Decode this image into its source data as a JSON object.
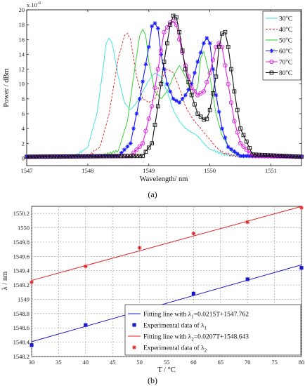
{
  "chart_data": [
    {
      "type": "line",
      "panel_label": "(a)",
      "xlabel": "Wavelength/ nm",
      "ylabel": "Power / dBm",
      "y_multiplier": "x 10",
      "y_exponent": "-6",
      "xlim": [
        1547,
        1551.5
      ],
      "ylim": [
        -1,
        20
      ],
      "xticks": [
        1547,
        1548,
        1549,
        1550,
        1551
      ],
      "yticks": [
        0,
        2,
        4,
        6,
        8,
        10,
        12,
        14,
        16,
        18,
        20
      ],
      "grid": false,
      "legend_position": "top-right",
      "series": [
        {
          "name": "30",
          "unit": "C",
          "deg": "o",
          "color": "#33e0e0",
          "dash": "",
          "marker": "none",
          "x": [
            1547.0,
            1547.8,
            1548.0,
            1548.15,
            1548.25,
            1548.3,
            1548.35,
            1548.4,
            1548.5,
            1548.6,
            1548.7,
            1548.8,
            1548.9,
            1549.0,
            1549.1,
            1549.2,
            1549.3,
            1549.4,
            1549.5,
            1549.6,
            1549.7,
            1549.8,
            1549.9,
            1550.0,
            1550.2,
            1550.4,
            1551.5
          ],
          "y": [
            0.2,
            0.3,
            1.5,
            6,
            12,
            15.5,
            16.2,
            15.5,
            11,
            7.5,
            6.5,
            7.5,
            9,
            10.5,
            11.5,
            11,
            9,
            6.5,
            5,
            4,
            3.5,
            3,
            2,
            1.2,
            0.6,
            0.3,
            0.2
          ]
        },
        {
          "name": "40",
          "unit": "C",
          "deg": "o",
          "color": "#e02020",
          "dash": "3,2",
          "marker": "none",
          "x": [
            1547.0,
            1548.0,
            1548.2,
            1548.35,
            1548.5,
            1548.6,
            1548.65,
            1548.7,
            1548.8,
            1548.9,
            1549.0,
            1549.1,
            1549.2,
            1549.3,
            1549.4,
            1549.5,
            1549.6,
            1549.7,
            1549.8,
            1549.9,
            1550.0,
            1550.1,
            1550.2,
            1550.4,
            1551.5
          ],
          "y": [
            0.2,
            0.3,
            1.5,
            6,
            13.5,
            16.5,
            16.8,
            16,
            11,
            8,
            7.5,
            8,
            10.5,
            12,
            11.5,
            9.5,
            7,
            5.5,
            4.5,
            3.5,
            2.5,
            1.5,
            0.8,
            0.3,
            0.2
          ]
        },
        {
          "name": "50",
          "unit": "C",
          "deg": "o",
          "color": "#22d022",
          "dash": "",
          "marker": "none",
          "x": [
            1547.0,
            1548.2,
            1548.5,
            1548.65,
            1548.75,
            1548.85,
            1548.9,
            1548.95,
            1549.0,
            1549.1,
            1549.2,
            1549.3,
            1549.4,
            1549.5,
            1549.6,
            1549.7,
            1549.8,
            1549.85,
            1549.9,
            1550.0,
            1550.1,
            1550.2,
            1550.35,
            1550.5,
            1551.5
          ],
          "y": [
            0.2,
            0.3,
            1,
            5,
            11,
            16.5,
            17.4,
            16.5,
            13,
            9,
            8,
            9,
            11,
            12.5,
            11,
            8.5,
            9.5,
            13.5,
            14.4,
            11,
            6,
            3,
            1,
            0.3,
            0.2
          ]
        },
        {
          "name": "60",
          "unit": "C",
          "deg": "o",
          "color": "#1a1aff",
          "dash": "",
          "marker": "star",
          "x": [
            1547.0,
            1548.5,
            1548.7,
            1548.85,
            1549.0,
            1549.05,
            1549.1,
            1549.15,
            1549.2,
            1549.3,
            1549.4,
            1549.5,
            1549.6,
            1549.7,
            1549.8,
            1549.9,
            1549.95,
            1550.0,
            1550.05,
            1550.1,
            1550.2,
            1550.3,
            1550.5,
            1551.5
          ],
          "y": [
            0.2,
            0.3,
            2,
            8,
            15,
            17.8,
            18.2,
            17.5,
            14,
            10,
            8,
            7.5,
            8.5,
            10,
            13,
            15.5,
            16.2,
            15.5,
            12,
            8.5,
            4,
            1.5,
            0.3,
            0.2
          ]
        },
        {
          "name": "70",
          "unit": "C",
          "deg": "o",
          "color": "#e020e0",
          "dash": "",
          "marker": "circle",
          "x": [
            1547.0,
            1548.7,
            1548.9,
            1549.05,
            1549.15,
            1549.25,
            1549.35,
            1549.4,
            1549.45,
            1549.5,
            1549.6,
            1549.7,
            1549.8,
            1549.9,
            1550.0,
            1550.1,
            1550.15,
            1550.2,
            1550.3,
            1550.4,
            1550.5,
            1550.7,
            1551.5
          ],
          "y": [
            0.2,
            0.3,
            2,
            7,
            12,
            17,
            18.3,
            18.5,
            18,
            16,
            12.5,
            9.5,
            8.5,
            9,
            11.5,
            15,
            15.5,
            15,
            10,
            5,
            2,
            0.3,
            0.2
          ]
        },
        {
          "name": "80",
          "unit": "C",
          "deg": "o",
          "color": "#111111",
          "dash": "",
          "marker": "square",
          "x": [
            1547.0,
            1548.9,
            1549.05,
            1549.15,
            1549.25,
            1549.35,
            1549.4,
            1549.45,
            1549.5,
            1549.6,
            1549.7,
            1549.8,
            1549.9,
            1549.95,
            1550.0,
            1550.1,
            1550.15,
            1550.2,
            1550.25,
            1550.3,
            1550.4,
            1550.5,
            1550.7,
            1551.5
          ],
          "y": [
            0.2,
            0.3,
            2,
            7,
            13,
            18,
            19.2,
            19,
            17,
            12,
            8.5,
            6,
            5.2,
            5.3,
            6.5,
            11,
            15,
            16.8,
            17,
            15,
            9,
            4,
            0.5,
            0.2
          ]
        }
      ]
    },
    {
      "type": "scatter",
      "panel_label": "(b)",
      "xlabel": "T / °C",
      "ylabel": "λ / nm",
      "xlim": [
        30,
        80
      ],
      "ylim": [
        1548.2,
        1550.3
      ],
      "xticks": [
        30,
        35,
        40,
        45,
        50,
        55,
        60,
        65,
        70,
        75,
        80
      ],
      "yticks": [
        "1548.2",
        "1548.4",
        "1548.6",
        "1548.8",
        "1549",
        "1549.2",
        "1549.4",
        "1549.6",
        "1549.8",
        "1550",
        "1550.2"
      ],
      "grid": true,
      "legend_position": "bottom-right",
      "fit_lines": [
        {
          "label_pre": "Fitting line with λ",
          "sub": "1",
          "label_post": "=0.0215T+1547.762",
          "slope": 0.0215,
          "intercept": 1547.762,
          "color": "#1a1acc"
        },
        {
          "label_pre": "Fitting line with λ",
          "sub": "2",
          "label_post": "=0.0207T+1548.643",
          "slope": 0.0207,
          "intercept": 1548.643,
          "color": "#e02020"
        }
      ],
      "series": [
        {
          "label_pre": "Experimental data of λ",
          "sub": "1",
          "marker": "square",
          "color": "#1a1acc",
          "x": [
            30,
            40,
            50,
            60,
            70,
            80
          ],
          "y": [
            1548.36,
            1548.64,
            1548.86,
            1549.08,
            1549.28,
            1549.44
          ]
        },
        {
          "label_pre": "Experimental data of λ",
          "sub": "2",
          "marker": "star",
          "color": "#e02020",
          "x": [
            30,
            40,
            50,
            60,
            70,
            80
          ],
          "y": [
            1549.24,
            1549.46,
            1549.72,
            1549.92,
            1550.08,
            1550.28
          ]
        }
      ]
    }
  ]
}
